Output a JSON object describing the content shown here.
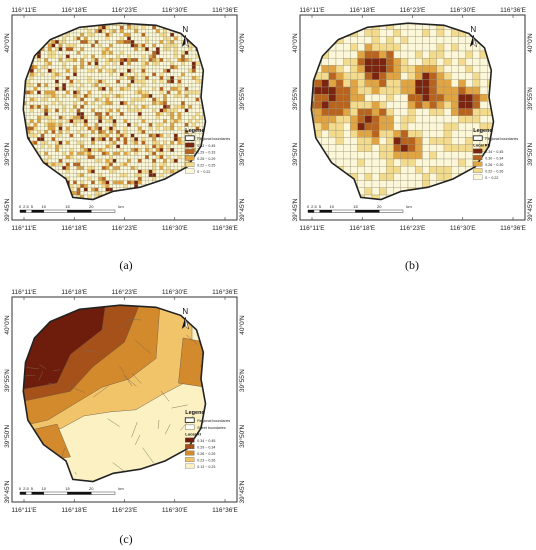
{
  "lon_labels": [
    "116°11′E",
    "116°18′E",
    "116°23′E",
    "116°30′E",
    "116°36′E"
  ],
  "lat_labels": [
    "40°0′N",
    "39°55′N",
    "39°50′N",
    "39°45′N"
  ],
  "north_label": "N",
  "scale_ticks": [
    "0",
    "2.5",
    "5",
    "10",
    "15",
    "20"
  ],
  "scale_unit": "km",
  "panels": [
    {
      "id": "a",
      "caption": "(a)",
      "legend_title": "Legend",
      "boundary_label": "Regional boundaries",
      "field_label": "",
      "classes": [
        {
          "label": "0.33 ~ 0.45",
          "color": "#7b2410"
        },
        {
          "label": "0.29 ~ 0.33",
          "color": "#b8641e"
        },
        {
          "label": "0.25 ~ 0.29",
          "color": "#e0a542"
        },
        {
          "label": "0.22 ~ 0.25",
          "color": "#f3db8e"
        },
        {
          "label": "0 ~ 0.22",
          "color": "#fbf7d8"
        }
      ]
    },
    {
      "id": "b",
      "caption": "(b)",
      "legend_title": "Legend",
      "boundary_label": "Regional boundaries",
      "field_label": "Local RI",
      "classes": [
        {
          "label": "0.34 ~ 0.45",
          "color": "#7b2410"
        },
        {
          "label": "0.30 ~ 0.34",
          "color": "#b8641e"
        },
        {
          "label": "0.26 ~ 0.30",
          "color": "#e0a542"
        },
        {
          "label": "0.22 ~ 0.26",
          "color": "#f3db8e"
        },
        {
          "label": "0 ~ 0.22",
          "color": "#fbf7d8"
        }
      ]
    },
    {
      "id": "c",
      "caption": "(c)",
      "legend_title": "Legend",
      "boundary_label": "Regional boundaries",
      "street_label": "Street boundaries",
      "field_label": "Local RI",
      "classes": [
        {
          "label": "0.34 ~ 0.45",
          "color": "#6e1c0c"
        },
        {
          "label": "0.29 ~ 0.34",
          "color": "#a6501a"
        },
        {
          "label": "0.26 ~ 0.29",
          "color": "#d38a2c"
        },
        {
          "label": "0.23 ~ 0.26",
          "color": "#f2c46a"
        },
        {
          "label": "0.13 ~ 0.23",
          "color": "#fbf1c2"
        }
      ]
    }
  ]
}
